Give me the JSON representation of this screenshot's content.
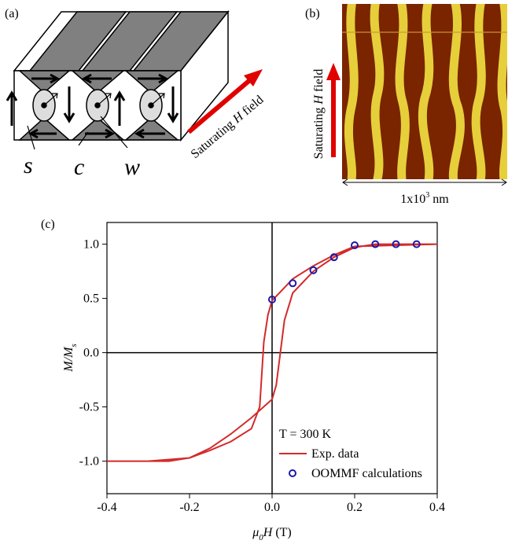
{
  "panel_a": {
    "label": "(a)",
    "s": "s",
    "c": "c",
    "w": "w",
    "field": [
      "Saturating ",
      "H",
      " field"
    ]
  },
  "panel_b": {
    "label": "(b)",
    "field": [
      "Saturating ",
      "H",
      " field"
    ],
    "scale": [
      "1x10",
      "3",
      " nm"
    ]
  },
  "chart_data": {
    "type": "line",
    "panel_label": "(c)",
    "x_label": {
      "mu": "μ",
      "sub": "0",
      "main": "H",
      "unit": " (T)"
    },
    "y_label": {
      "main": "M/M",
      "sub": "s"
    },
    "annotation": "T = 300 K",
    "xlim": [
      -0.4,
      0.4
    ],
    "ylim": [
      -1.3,
      1.2
    ],
    "xticks": [
      -0.4,
      -0.2,
      {
        "value": 0,
        "label": "0.0"
      },
      0.2,
      0.4
    ],
    "yticks": [
      {
        "value": -1,
        "label": "-1.0"
      },
      -0.5,
      {
        "value": 0,
        "label": "0.0"
      },
      0.5,
      {
        "value": 1,
        "label": "1.0"
      }
    ],
    "series": [
      {
        "name": "Exp. data",
        "color": "#d42a2a",
        "kind": "line",
        "x": [
          -0.4,
          -0.3,
          -0.25,
          -0.2,
          -0.15,
          -0.1,
          -0.05,
          0,
          0.01,
          0.02,
          0.03,
          0.05,
          0.1,
          0.15,
          0.2,
          0.25,
          0.3,
          0.4,
          0.4,
          0.2,
          0.15,
          0.1,
          0.05,
          0,
          -0.01,
          -0.02,
          -0.025,
          -0.03,
          -0.05,
          -0.1,
          -0.15,
          -0.2,
          -0.3,
          -0.4
        ],
        "values": [
          -1.0,
          -1.0,
          -1.0,
          -0.97,
          -0.88,
          -0.75,
          -0.6,
          -0.43,
          -0.3,
          0.0,
          0.3,
          0.55,
          0.75,
          0.88,
          0.97,
          1.0,
          1.0,
          1.0,
          1.0,
          0.98,
          0.9,
          0.8,
          0.68,
          0.48,
          0.35,
          0.1,
          -0.2,
          -0.5,
          -0.7,
          -0.82,
          -0.9,
          -0.97,
          -1.0,
          -1.0
        ]
      },
      {
        "name": "OOMMF calculations",
        "color": "#1a1aa8",
        "kind": "scatter",
        "x": [
          0,
          0.05,
          0.1,
          0.15,
          0.2,
          0.25,
          0.3,
          0.35
        ],
        "values": [
          0.49,
          0.64,
          0.76,
          0.88,
          0.99,
          1.0,
          1.0,
          1.0
        ]
      }
    ]
  }
}
